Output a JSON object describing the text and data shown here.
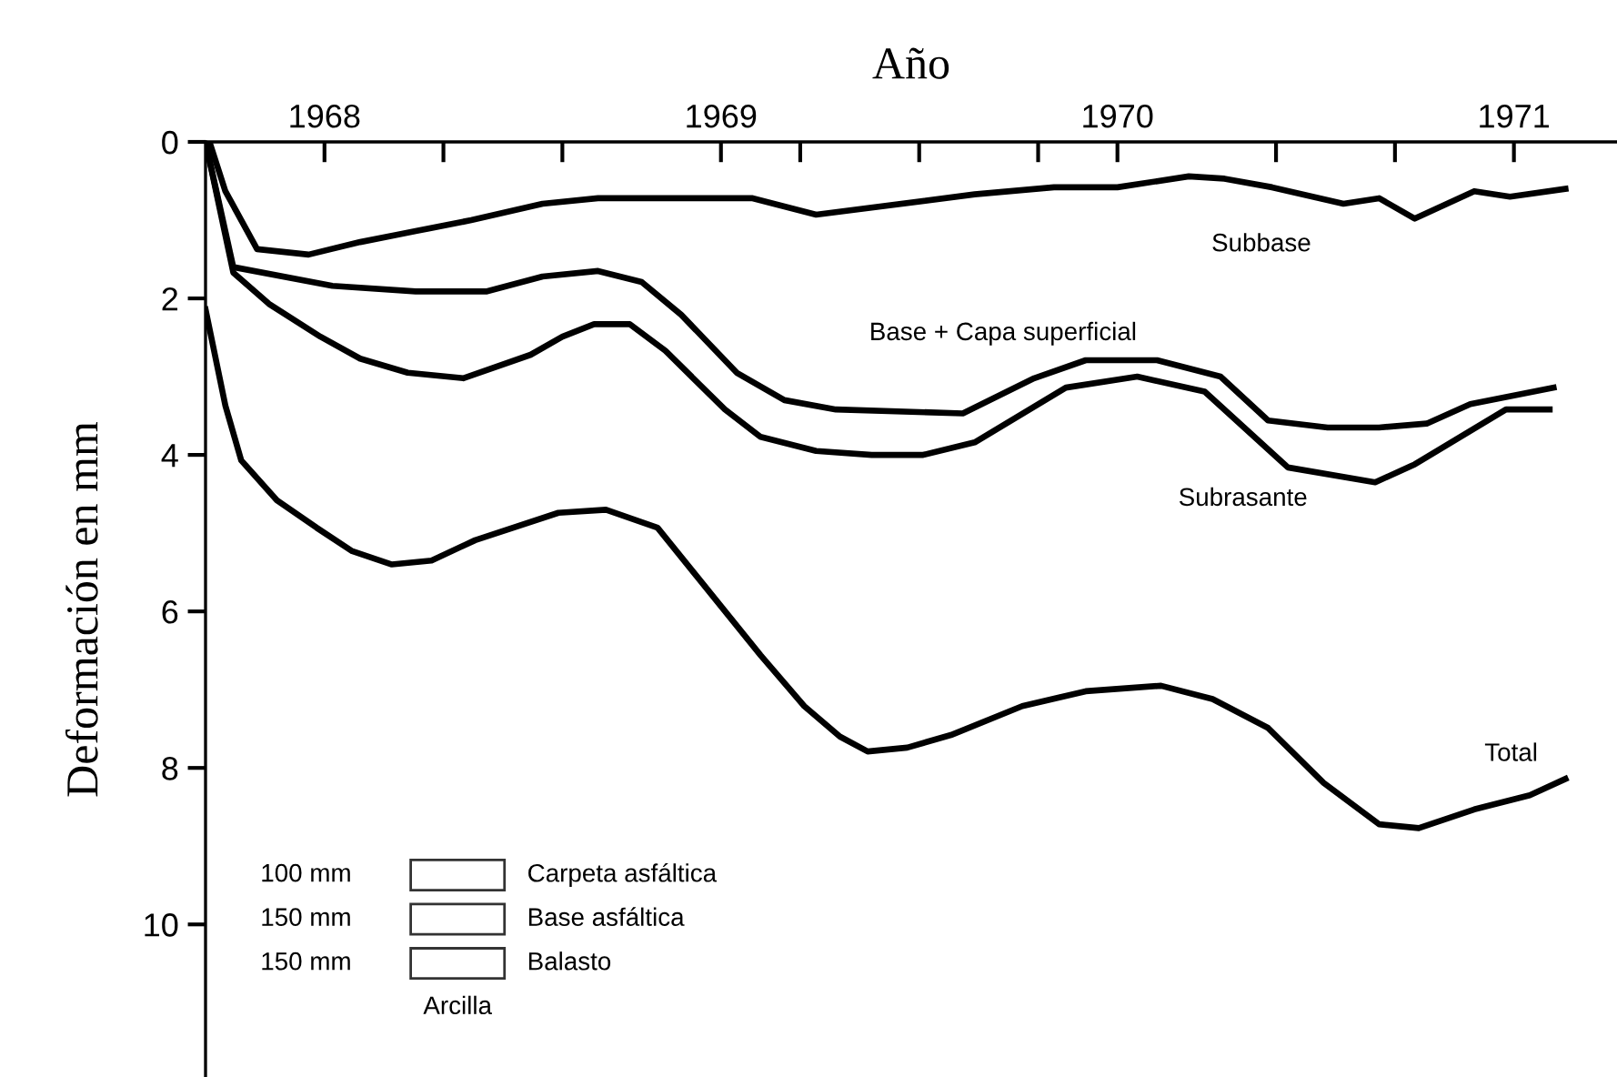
{
  "chart_data": {
    "type": "line",
    "xlabel": "Año",
    "ylabel": "Deformación en mm",
    "xlim": [
      1967.7,
      1971.26
    ],
    "ylim": [
      11.95,
      0
    ],
    "xticks": [
      1968,
      {
        "value": 1968.3,
        "label": null
      },
      {
        "value": 1968.6,
        "label": null
      },
      1969,
      {
        "value": 1969.2,
        "label": null
      },
      {
        "value": 1969.5,
        "label": null
      },
      {
        "value": 1969.8,
        "label": null
      },
      1970,
      {
        "value": 1970.4,
        "label": null
      },
      {
        "value": 1970.7,
        "label": null
      },
      1971
    ],
    "yticks": [
      0,
      2,
      4,
      6,
      8,
      10
    ],
    "grid": false,
    "legend": false,
    "marker": "none",
    "line_style": "solid",
    "series": [
      {
        "name": "Subbase",
        "color": "#000000",
        "x": [
          1967.71,
          1967.75,
          1967.83,
          1967.96,
          1968.09,
          1968.23,
          1968.37,
          1968.55,
          1968.69,
          1969.08,
          1969.24,
          1969.64,
          1969.84,
          1970.0,
          1970.18,
          1970.27,
          1970.39,
          1970.57,
          1970.66,
          1970.75,
          1970.9,
          1970.99,
          1971.13
        ],
        "values": [
          0,
          0.63,
          1.37,
          1.44,
          1.28,
          1.14,
          1.0,
          0.79,
          0.72,
          0.72,
          0.93,
          0.67,
          0.58,
          0.58,
          0.44,
          0.47,
          0.58,
          0.79,
          0.72,
          0.98,
          0.63,
          0.7,
          0.6
        ]
      },
      {
        "name": "Base + Capa superficial",
        "color": "#000000",
        "x": [
          1967.7,
          1967.77,
          1968.02,
          1968.23,
          1968.41,
          1968.55,
          1968.69,
          1968.8,
          1968.9,
          1969.04,
          1969.16,
          1969.29,
          1969.61,
          1969.79,
          1969.92,
          1970.1,
          1970.26,
          1970.38,
          1970.53,
          1970.66,
          1970.78,
          1970.89,
          1971.1
        ],
        "values": [
          0,
          1.6,
          1.84,
          1.91,
          1.91,
          1.72,
          1.65,
          1.79,
          2.21,
          2.95,
          3.3,
          3.42,
          3.47,
          3.02,
          2.79,
          2.79,
          3.0,
          3.56,
          3.65,
          3.65,
          3.6,
          3.35,
          3.14
        ]
      },
      {
        "name": "Subrasante",
        "color": "#000000",
        "x": [
          1967.7,
          1967.77,
          1967.86,
          1967.99,
          1968.09,
          1968.21,
          1968.35,
          1968.52,
          1968.6,
          1968.68,
          1968.77,
          1968.86,
          1969.01,
          1969.1,
          1969.24,
          1969.38,
          1969.51,
          1969.64,
          1969.87,
          1970.05,
          1970.22,
          1970.43,
          1970.65,
          1970.75,
          1970.98,
          1971.09
        ],
        "values": [
          0,
          1.67,
          2.07,
          2.49,
          2.77,
          2.95,
          3.02,
          2.72,
          2.49,
          2.33,
          2.33,
          2.67,
          3.42,
          3.77,
          3.95,
          4.0,
          4.0,
          3.84,
          3.14,
          3.0,
          3.19,
          4.16,
          4.35,
          4.12,
          3.42,
          3.42
        ]
      },
      {
        "name": "Total",
        "color": "#000000",
        "x": [
          1967.7,
          1967.75,
          1967.79,
          1967.88,
          1967.98,
          1968.07,
          1968.17,
          1968.27,
          1968.38,
          1968.59,
          1968.71,
          1968.84,
          1969.1,
          1969.21,
          1969.3,
          1969.37,
          1969.47,
          1969.58,
          1969.76,
          1969.92,
          1970.11,
          1970.24,
          1970.38,
          1970.52,
          1970.66,
          1970.76,
          1970.9,
          1971.04,
          1971.13
        ],
        "values": [
          2.14,
          3.37,
          4.07,
          4.58,
          4.93,
          5.23,
          5.4,
          5.35,
          5.09,
          4.74,
          4.7,
          4.93,
          6.56,
          7.21,
          7.6,
          7.79,
          7.74,
          7.58,
          7.21,
          7.02,
          6.95,
          7.12,
          7.49,
          8.19,
          8.72,
          8.77,
          8.53,
          8.35,
          8.14
        ]
      }
    ],
    "annotations": [
      "100 mm",
      "Carpeta asfáltica",
      "150 mm",
      "Base asfáltica",
      "150 mm",
      "Balasto",
      "Arcilla"
    ]
  }
}
